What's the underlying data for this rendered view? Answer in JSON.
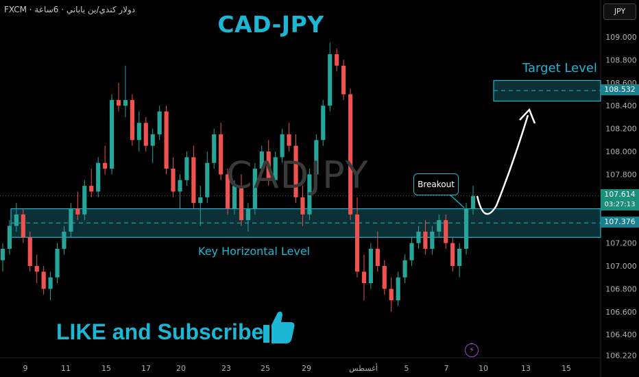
{
  "header": {
    "symbol": "FXCM · دولار كندي/ين ياباني · 6ساعة",
    "currency_button": "JPY"
  },
  "chart_data": {
    "type": "candlestick",
    "title": "CAD-JPY",
    "watermark": "CADJPY",
    "y_range": [
      106.2,
      109.2
    ],
    "y_ticks": [
      "109.000",
      "108.800",
      "108.600",
      "108.400",
      "108.200",
      "108.000",
      "107.800",
      "107.600",
      "107.400",
      "107.200",
      "107.000",
      "106.800",
      "106.600",
      "106.400",
      "106.220"
    ],
    "x_ticks": [
      "9",
      "11",
      "15",
      "17",
      "20",
      "23",
      "25",
      "29",
      "أغسطس",
      "5",
      "7",
      "10",
      "13",
      "15"
    ],
    "colors": {
      "up": "#26a69a",
      "down": "#ef5350",
      "accent": "#1bb7d4",
      "zone_fill": "#0d3a40"
    },
    "candles": [
      [
        107.05,
        107.2,
        106.95,
        107.15
      ],
      [
        107.15,
        107.4,
        107.1,
        107.35
      ],
      [
        107.35,
        107.55,
        107.3,
        107.45
      ],
      [
        107.45,
        107.5,
        107.2,
        107.25
      ],
      [
        107.25,
        107.3,
        106.95,
        107.0
      ],
      [
        107.0,
        107.1,
        106.85,
        106.95
      ],
      [
        106.95,
        107.0,
        106.75,
        106.8
      ],
      [
        106.8,
        106.95,
        106.7,
        106.9
      ],
      [
        106.9,
        107.2,
        106.85,
        107.15
      ],
      [
        107.15,
        107.35,
        107.1,
        107.3
      ],
      [
        107.3,
        107.55,
        107.25,
        107.5
      ],
      [
        107.5,
        107.65,
        107.4,
        107.45
      ],
      [
        107.45,
        107.75,
        107.4,
        107.7
      ],
      [
        107.7,
        107.85,
        107.6,
        107.65
      ],
      [
        107.65,
        107.95,
        107.6,
        107.9
      ],
      [
        107.9,
        108.05,
        107.8,
        107.85
      ],
      [
        107.85,
        108.5,
        107.8,
        108.45
      ],
      [
        108.45,
        108.6,
        108.35,
        108.4
      ],
      [
        108.4,
        108.75,
        108.3,
        108.45
      ],
      [
        108.45,
        108.5,
        108.05,
        108.1
      ],
      [
        108.1,
        108.35,
        108.0,
        108.25
      ],
      [
        108.25,
        108.3,
        108.0,
        108.05
      ],
      [
        108.05,
        108.2,
        107.9,
        108.15
      ],
      [
        108.15,
        108.4,
        108.1,
        108.35
      ],
      [
        108.35,
        108.4,
        107.8,
        107.85
      ],
      [
        107.85,
        107.95,
        107.6,
        107.65
      ],
      [
        107.65,
        107.8,
        107.5,
        107.75
      ],
      [
        107.75,
        108.0,
        107.7,
        107.95
      ],
      [
        107.95,
        108.05,
        107.5,
        107.55
      ],
      [
        107.55,
        107.7,
        107.35,
        107.6
      ],
      [
        107.6,
        108.0,
        107.55,
        107.9
      ],
      [
        107.9,
        108.2,
        107.85,
        108.15
      ],
      [
        108.15,
        108.25,
        107.75,
        107.8
      ],
      [
        107.8,
        107.85,
        107.45,
        107.5
      ],
      [
        107.5,
        107.75,
        107.45,
        107.7
      ],
      [
        107.7,
        107.8,
        107.35,
        107.4
      ],
      [
        107.4,
        107.55,
        107.3,
        107.5
      ],
      [
        107.5,
        107.9,
        107.45,
        107.85
      ],
      [
        107.85,
        108.05,
        107.8,
        108.0
      ],
      [
        108.0,
        108.1,
        107.7,
        107.75
      ],
      [
        107.75,
        108.0,
        107.7,
        107.95
      ],
      [
        107.95,
        108.2,
        107.9,
        108.15
      ],
      [
        108.15,
        108.25,
        108.0,
        108.05
      ],
      [
        108.05,
        108.15,
        107.55,
        107.6
      ],
      [
        107.6,
        107.7,
        107.35,
        107.45
      ],
      [
        107.45,
        107.85,
        107.4,
        107.8
      ],
      [
        107.8,
        108.15,
        107.75,
        108.1
      ],
      [
        108.1,
        108.45,
        108.05,
        108.4
      ],
      [
        108.4,
        108.95,
        108.35,
        108.85
      ],
      [
        108.85,
        108.9,
        108.7,
        108.75
      ],
      [
        108.75,
        108.8,
        108.45,
        108.5
      ],
      [
        108.5,
        108.55,
        107.4,
        107.45
      ],
      [
        107.45,
        107.6,
        106.9,
        106.95
      ],
      [
        106.95,
        107.1,
        106.7,
        106.85
      ],
      [
        106.85,
        107.2,
        106.8,
        107.15
      ],
      [
        107.15,
        107.3,
        106.95,
        107.0
      ],
      [
        107.0,
        107.05,
        106.75,
        106.8
      ],
      [
        106.8,
        106.9,
        106.6,
        106.7
      ],
      [
        106.7,
        106.95,
        106.65,
        106.9
      ],
      [
        106.9,
        107.1,
        106.85,
        107.05
      ],
      [
        107.05,
        107.25,
        107.0,
        107.2
      ],
      [
        107.2,
        107.35,
        107.15,
        107.3
      ],
      [
        107.3,
        107.4,
        107.1,
        107.15
      ],
      [
        107.15,
        107.35,
        107.1,
        107.3
      ],
      [
        107.3,
        107.45,
        107.25,
        107.4
      ],
      [
        107.4,
        107.45,
        107.15,
        107.2
      ],
      [
        107.2,
        107.25,
        106.95,
        107.0
      ],
      [
        107.0,
        107.2,
        106.9,
        107.15
      ],
      [
        107.15,
        107.55,
        107.1,
        107.5
      ],
      [
        107.5,
        107.7,
        107.45,
        107.61
      ]
    ]
  },
  "annotations": {
    "target_label": "Target Level",
    "key_label": "Key Horizontal Level",
    "breakout_label": "Breakout",
    "cta": "LIKE and Subscribe"
  },
  "price_labels": {
    "live": "107.614",
    "timer": "03:27:13",
    "key": "107.376",
    "target": "108.532"
  }
}
